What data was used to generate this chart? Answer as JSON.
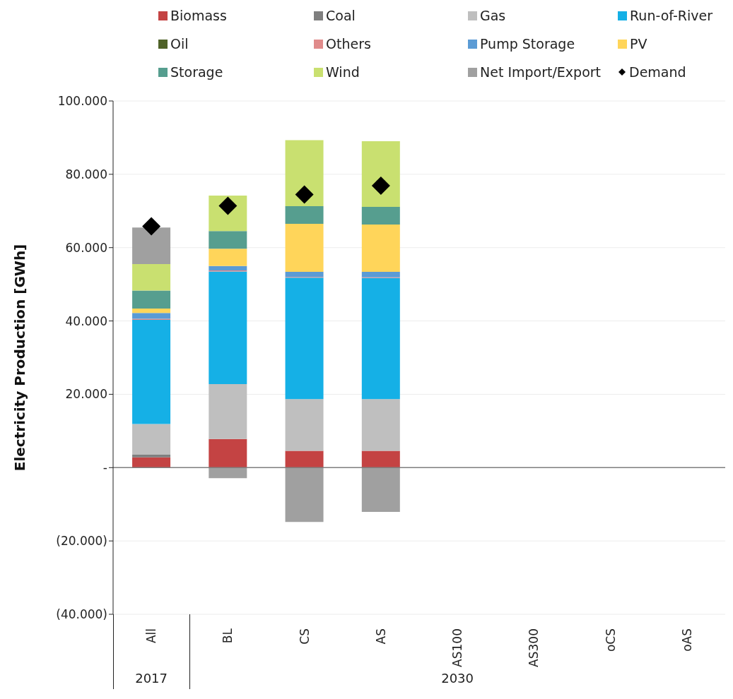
{
  "chart_data": {
    "type": "bar",
    "stacked": true,
    "ylabel": "Electricity Production [GWh]",
    "categories": [
      "All",
      "BL",
      "CS",
      "AS",
      "AS100",
      "AS300",
      "oCS",
      "oAS"
    ],
    "annotations": [
      "2017",
      "2030"
    ],
    "ylim": [
      -40000,
      100000
    ],
    "yticks": [
      {
        "value": -40000,
        "label": "(40.000)"
      },
      {
        "value": -20000,
        "label": "(20.000)"
      },
      {
        "value": 0,
        "label": "-"
      },
      {
        "value": 20000,
        "label": "20.000"
      },
      {
        "value": 40000,
        "label": "40.000"
      },
      {
        "value": 60000,
        "label": "60.000"
      },
      {
        "value": 80000,
        "label": "80.000"
      },
      {
        "value": 100000,
        "label": "100.000"
      }
    ],
    "grid": "y",
    "legend": "top",
    "series": [
      {
        "name": "Biomass",
        "color": "#c44343",
        "values": [
          2800,
          7800,
          4600,
          4600,
          null,
          null,
          null,
          null
        ]
      },
      {
        "name": "Coal",
        "color": "#7f7f7f",
        "values": [
          700,
          0,
          0,
          0,
          null,
          null,
          null,
          null
        ]
      },
      {
        "name": "Gas",
        "color": "#bfbfbf",
        "values": [
          8400,
          15000,
          14100,
          14100,
          null,
          null,
          null,
          null
        ]
      },
      {
        "name": "Run-of-River",
        "color": "#15b0e6",
        "values": [
          28400,
          30700,
          33100,
          33000,
          null,
          null,
          null,
          null
        ]
      },
      {
        "name": "Oil",
        "color": "#4f6228",
        "values": [
          0,
          0,
          0,
          0,
          null,
          null,
          null,
          null
        ]
      },
      {
        "name": "Others",
        "color": "#e08b8b",
        "values": [
          300,
          300,
          200,
          200,
          null,
          null,
          null,
          null
        ]
      },
      {
        "name": "Pump Storage",
        "color": "#5b9bd5",
        "values": [
          1600,
          1200,
          1400,
          1500,
          null,
          null,
          null,
          null
        ]
      },
      {
        "name": "PV",
        "color": "#ffd55a",
        "values": [
          1200,
          4700,
          13100,
          12900,
          null,
          null,
          null,
          null
        ]
      },
      {
        "name": "Storage",
        "color": "#569e8f",
        "values": [
          4900,
          4800,
          4800,
          4800,
          null,
          null,
          null,
          null
        ]
      },
      {
        "name": "Wind",
        "color": "#c9e070",
        "values": [
          7200,
          9700,
          18000,
          17900,
          null,
          null,
          null,
          null
        ]
      },
      {
        "name": "Net Import/Export",
        "color": "#a0a0a0",
        "values": [
          10000,
          -2900,
          -14800,
          -12100,
          null,
          null,
          null,
          null
        ]
      },
      {
        "name": "Demand",
        "type": "scatter",
        "marker": "diamond",
        "color": "#000000",
        "values": [
          65800,
          71400,
          74500,
          76900,
          null,
          null,
          null,
          null
        ]
      }
    ]
  }
}
